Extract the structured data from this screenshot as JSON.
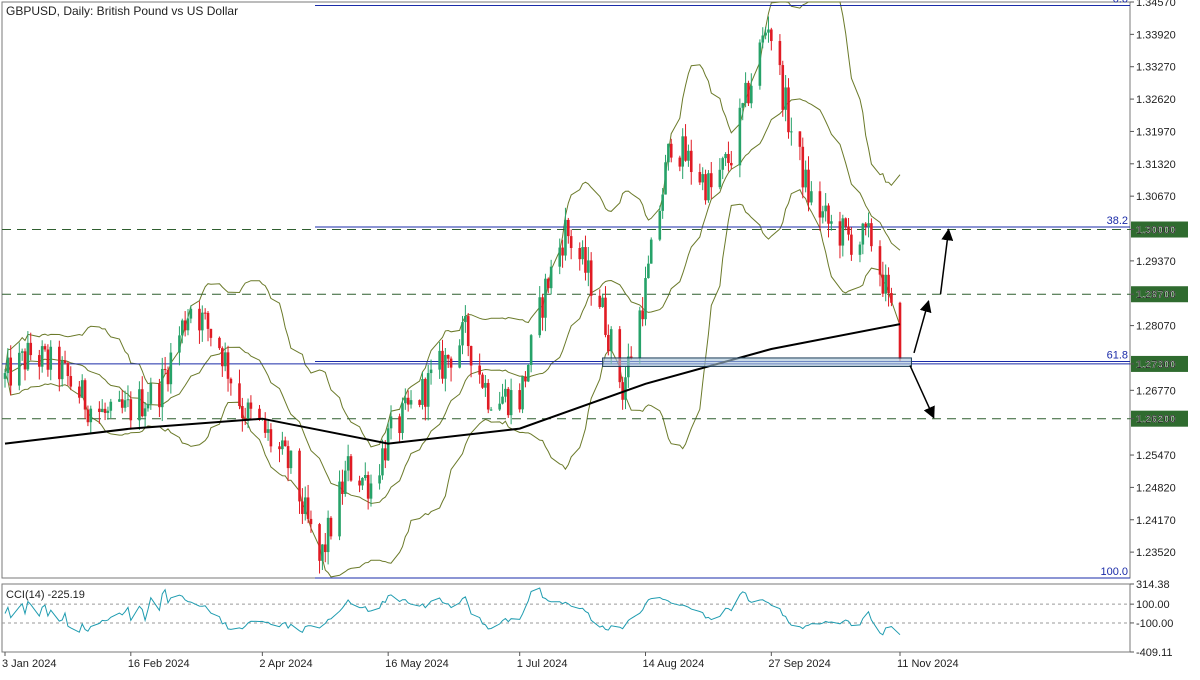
{
  "chart_data": [
    {
      "type": "candlestick",
      "title": "GBPUSD, Daily:  British Pound vs US Dollar",
      "symbol": "GBPUSD",
      "timeframe": "Daily",
      "instrument_name": "British Pound vs US Dollar",
      "ylim": [
        1.23,
        1.3457
      ],
      "price_ticks": [
        "1.34570",
        "1.33920",
        "1.33270",
        "1.32620",
        "1.31970",
        "1.31320",
        "1.30670",
        "1.30000",
        "1.29370",
        "1.28700",
        "1.28070",
        "1.27300",
        "1.26770",
        "1.26200",
        "1.25470",
        "1.24820",
        "1.24170",
        "1.23520"
      ],
      "date_ticks": [
        "3 Jan 2024",
        "16 Feb 2024",
        "2 Apr 2024",
        "16 May 2024",
        "1 Jul 2024",
        "14 Aug 2024",
        "27 Sep 2024",
        "11 Nov 2024"
      ],
      "highlighted_levels": [
        {
          "price": 1.3,
          "label": "1.30000",
          "color": "#2f6b2f",
          "style": "dashed"
        },
        {
          "price": 1.287,
          "label": "1.28700",
          "color": "#2f6b2f",
          "style": "dashed"
        },
        {
          "price": 1.273,
          "label": "1.27300",
          "color": "#2f6b2f",
          "style": "solid"
        },
        {
          "price": 1.262,
          "label": "1.26200",
          "color": "#2f6b2f",
          "style": "dashed"
        }
      ],
      "fibonacci": {
        "high": 1.345,
        "low": 1.23,
        "levels": [
          {
            "label": "0.0",
            "price": 1.345
          },
          {
            "label": "38.2",
            "price": 1.3005
          },
          {
            "label": "61.8",
            "price": 1.2735
          },
          {
            "label": "100.0",
            "price": 1.23
          }
        ]
      },
      "series": [
        {
          "name": "GBPUSD",
          "kind": "ohlc",
          "bull_color": "#26a269",
          "bear_color": "#e01b24",
          "anchors": [
            [
              "3 Jan 2024",
              1.27
            ],
            [
              "12 Jan 2024",
              1.275
            ],
            [
              "22 Jan 2024",
              1.272
            ],
            [
              "1 Feb 2024",
              1.265
            ],
            [
              "9 Feb 2024",
              1.262
            ],
            [
              "16 Feb 2024",
              1.264
            ],
            [
              "26 Feb 2024",
              1.268
            ],
            [
              "8 Mar 2024",
              1.285
            ],
            [
              "18 Mar 2024",
              1.277
            ],
            [
              "26 Mar 2024",
              1.264
            ],
            [
              "2 Apr 2024",
              1.26
            ],
            [
              "12 Apr 2024",
              1.252
            ],
            [
              "22 Apr 2024",
              1.233
            ],
            [
              "2 May 2024",
              1.252
            ],
            [
              "10 May 2024",
              1.249
            ],
            [
              "16 May 2024",
              1.258
            ],
            [
              "3 Jun 2024",
              1.272
            ],
            [
              "12 Jun 2024",
              1.279
            ],
            [
              "20 Jun 2024",
              1.267
            ],
            [
              "1 Jul 2024",
              1.266
            ],
            [
              "10 Jul 2024",
              1.288
            ],
            [
              "17 Jul 2024",
              1.3
            ],
            [
              "29 Jul 2024",
              1.286
            ],
            [
              "6 Aug 2024",
              1.268
            ],
            [
              "14 Aug 2024",
              1.288
            ],
            [
              "23 Aug 2024",
              1.318
            ],
            [
              "30 Aug 2024",
              1.313
            ],
            [
              "6 Sep 2024",
              1.308
            ],
            [
              "13 Sep 2024",
              1.315
            ],
            [
              "20 Sep 2024",
              1.33
            ],
            [
              "26 Sep 2024",
              1.342
            ],
            [
              "3 Oct 2024",
              1.322
            ],
            [
              "10 Oct 2024",
              1.307
            ],
            [
              "17 Oct 2024",
              1.301
            ],
            [
              "25 Oct 2024",
              1.298
            ],
            [
              "1 Nov 2024",
              1.298
            ],
            [
              "6 Nov 2024",
              1.288
            ],
            [
              "11 Nov 2024",
              1.274
            ]
          ]
        },
        {
          "name": "Bollinger Bands",
          "kind": "band",
          "color": "#6b7a2a"
        },
        {
          "name": "Moving Average",
          "kind": "line",
          "color": "#000000",
          "anchors": [
            [
              "3 Jan 2024",
              1.257
            ],
            [
              "16 Feb 2024",
              1.26
            ],
            [
              "2 Apr 2024",
              1.262
            ],
            [
              "16 May 2024",
              1.257
            ],
            [
              "1 Jul 2024",
              1.26
            ],
            [
              "14 Aug 2024",
              1.269
            ],
            [
              "27 Sep 2024",
              1.276
            ],
            [
              "11 Nov 2024",
              1.281
            ]
          ]
        }
      ],
      "scenario_arrows": [
        {
          "direction": "up",
          "from": [
            "11 Nov 2024",
            1.274
          ],
          "to": [
            "28 Nov 2024",
            1.3
          ]
        },
        {
          "direction": "down",
          "from": [
            "11 Nov 2024",
            1.2735
          ],
          "to": [
            "20 Nov 2024",
            1.263
          ]
        }
      ],
      "support_zone": {
        "price_low": 1.2725,
        "price_high": 1.2742,
        "from_date": "30 Jul 2024",
        "to_date": "15 Nov 2024"
      }
    },
    {
      "type": "line",
      "title": "CCI(14) -225.19",
      "indicator": "CCI(14)",
      "last_value": -225.19,
      "ylim": [
        -409.11,
        314.38
      ],
      "ticks": [
        "314.38",
        "100.00",
        "-100.00",
        "-409.11"
      ],
      "reference_lines": [
        100,
        -100
      ],
      "color": "#1f9cb0"
    }
  ]
}
